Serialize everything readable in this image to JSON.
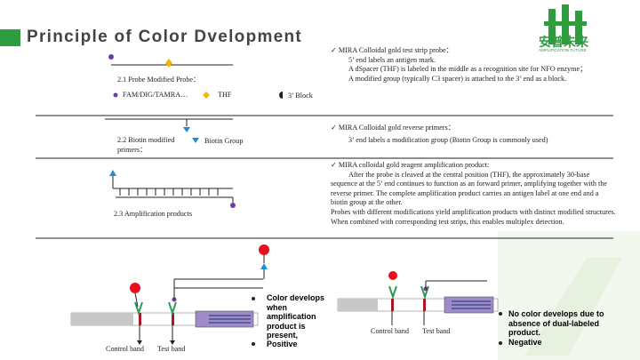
{
  "header": {
    "title": "Principle of Color Dvelopment",
    "logo_cn": "安普未来",
    "logo_en": "AMPLIFICATION FUTURE"
  },
  "sections": [
    {
      "label": "2.1 Probe Modified Probe：",
      "legend": [
        "FAM/DIG/TAMRA…",
        "THF",
        "3’ Block"
      ],
      "heading": "MIRA Colloidal gold test strip probe：",
      "lines": [
        "5’ end labels an antigen mark.",
        "A dSpacer (THF) is labeled in the middle as a recognition site for NFO enzyme；",
        "A modified group (typically C3 spacer) is attached to the 3’ end as a block."
      ]
    },
    {
      "label": "2.2 Biotin modified primers：",
      "legend": [
        "Biotin Group"
      ],
      "heading": "MIRA Colloidal gold reverse primers：",
      "lines": [
        "3’ end labels a modification group (Biotin Group is commonly used)"
      ]
    },
    {
      "label": "2.3 Amplification products",
      "legend": [],
      "heading": "MIRA colloidal gold reagent amplification product:",
      "lines": [
        "After the probe is cleaved at the central position (THF), the approximately 30-base sequence at the 5’ end continues to function as an forward primer, amplifying together with the reverse primer. The complete amplification product carries an antigen label at one end and a biotin group at the other.",
        "Probes with different modifications yield amplification products with distinct modified structures. When combined with corresponding test strips, this enables multiplex detection."
      ]
    }
  ],
  "results": [
    {
      "control": "Control band",
      "test": "Test band",
      "bullets": [
        "Color develops when amplification product is present,",
        "Positive"
      ]
    },
    {
      "control": "Control band",
      "test": "Test band",
      "bullets": [
        "No color develops due to absence of dual-labeled product.",
        "Negative"
      ]
    }
  ]
}
